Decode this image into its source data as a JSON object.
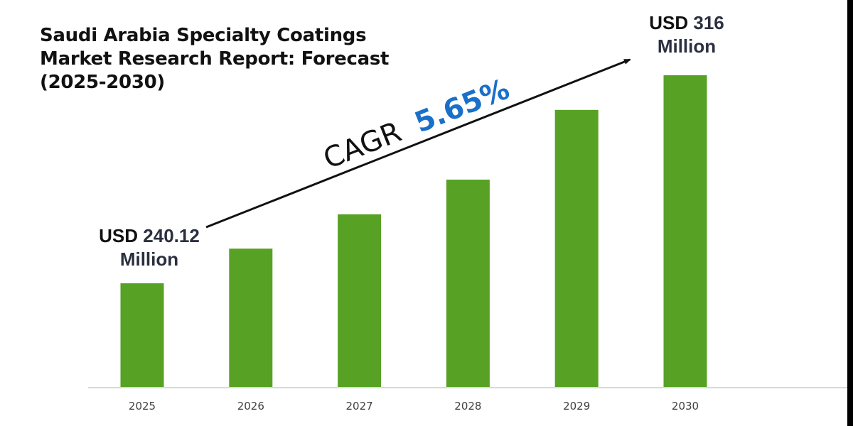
{
  "chart_data": {
    "type": "bar",
    "title": "Saudi Arabia Specialty Coatings Market Research Report: Forecast (2025-2030)",
    "title_lines": [
      "Saudi Arabia Specialty Coatings",
      "Market Research Report: Forecast",
      "(2025-2030)"
    ],
    "xlabel": "",
    "ylabel": "",
    "categories": [
      "2025",
      "2026",
      "2027",
      "2028",
      "2029",
      "2030"
    ],
    "labeled_values": {
      "2025": 240.12,
      "2030": 316
    },
    "relative_levels": [
      0.334,
      0.445,
      0.555,
      0.666,
      0.889,
      1.0
    ],
    "relative_levels_note": "Visual bar levels as fraction of tallest bar; bars are illustrative, only 2025 and 2030 values are printed",
    "unit": "USD Million",
    "grid": false,
    "legend": "none",
    "bar_color": "#57a125",
    "axis_color": "#d9d9d9",
    "annotations": {
      "start": {
        "prefix": "USD",
        "value": "240.12",
        "unit": "Million",
        "category": "2025"
      },
      "end": {
        "prefix": "USD",
        "value": "316",
        "unit": "Million",
        "category": "2030"
      },
      "cagr": {
        "label": "CAGR",
        "value": "5.65%",
        "label_color": "#111111",
        "value_color": "#1a6fc9"
      }
    }
  }
}
